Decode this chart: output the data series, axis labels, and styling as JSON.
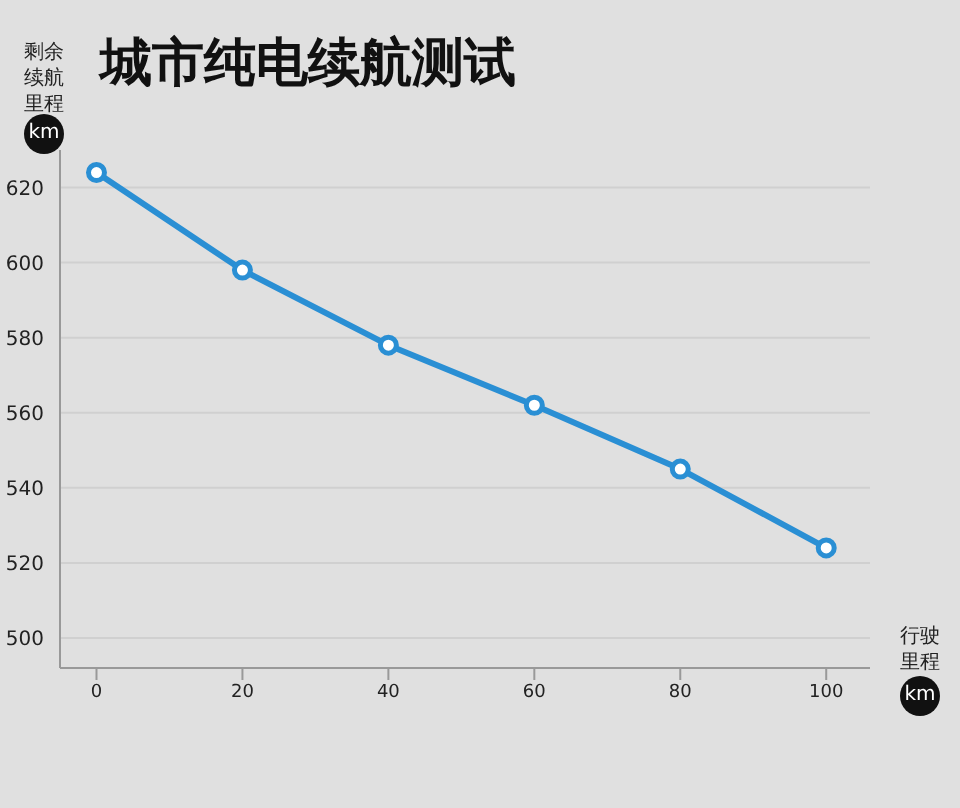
{
  "chart_data": {
    "type": "line",
    "title": "城市纯电续航测试",
    "ylabel": "剩余续航里程",
    "xlabel": "行驶里程",
    "annotations": [
      "km",
      "km"
    ],
    "x": [
      0,
      20,
      40,
      60,
      80,
      100
    ],
    "series": [
      {
        "color": "#2a8fd4",
        "values": [
          624,
          598,
          578,
          562,
          545,
          524
        ]
      }
    ],
    "xlim": [
      -5,
      106
    ],
    "xticks": [
      0,
      20,
      40,
      60,
      80,
      100
    ],
    "ylim": [
      492,
      630
    ],
    "yticks": [
      500,
      520,
      540,
      560,
      580,
      600,
      620
    ],
    "grid": "y",
    "marker": "circle",
    "line_style": "solid",
    "legend": false
  }
}
